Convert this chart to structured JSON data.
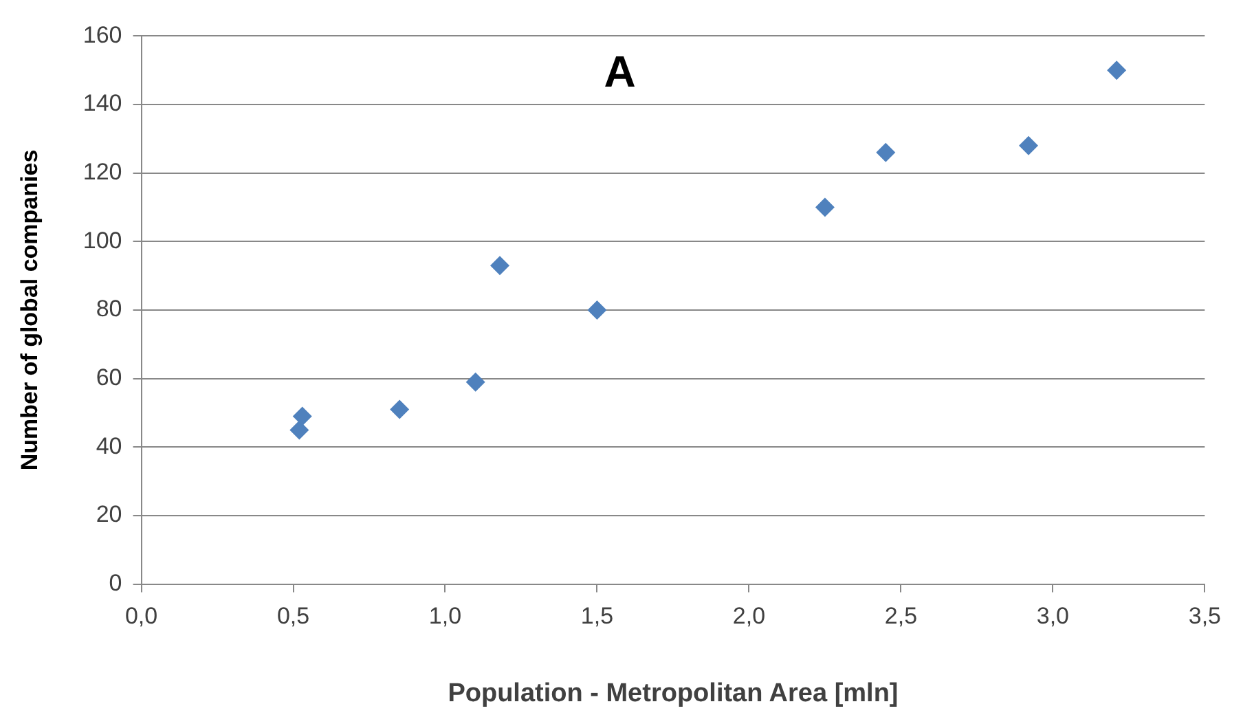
{
  "chart_data": {
    "type": "scatter",
    "xlabel": "Population - Metropolitan Area [mln]",
    "ylabel": "Number of global companies",
    "annotations": [
      "A"
    ],
    "x": [
      0.52,
      0.53,
      0.85,
      1.1,
      1.18,
      1.5,
      2.25,
      2.45,
      2.92,
      3.21
    ],
    "series": [
      {
        "color": "#4f81bd",
        "values": [
          45,
          49,
          51,
          59,
          93,
          80,
          110,
          126,
          128,
          150
        ]
      }
    ],
    "xlim": [
      0,
      3.5
    ],
    "xticks": [
      {
        "value": 0,
        "label": "0,0"
      },
      {
        "value": 0.5,
        "label": "0,5"
      },
      {
        "value": 1,
        "label": "1,0"
      },
      {
        "value": 1.5,
        "label": "1,5"
      },
      {
        "value": 2,
        "label": "2,0"
      },
      {
        "value": 2.5,
        "label": "2,5"
      },
      {
        "value": 3,
        "label": "3,0"
      },
      {
        "value": 3.5,
        "label": "3,5"
      }
    ],
    "ylim": [
      0,
      160
    ],
    "yticks": [
      0,
      20,
      40,
      60,
      80,
      100,
      120,
      140,
      160
    ],
    "grid": "y",
    "legend": false,
    "marker": "diamond"
  }
}
